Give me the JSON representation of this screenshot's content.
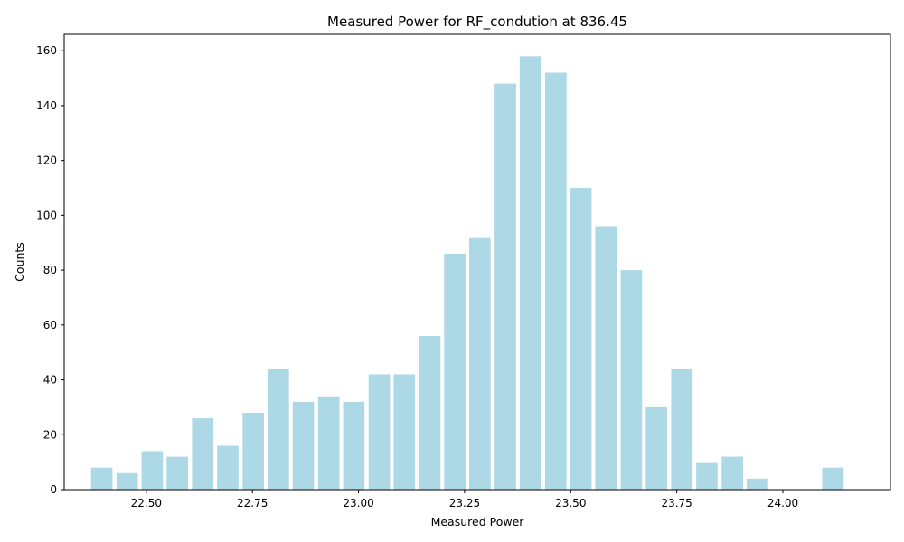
{
  "chart_data": {
    "type": "bar",
    "title": "Measured Power for RF_condution at 836.45",
    "xlabel": "Measured Power",
    "ylabel": "Counts",
    "bar_color": "#add8e6",
    "xlim": [
      22.3065,
      24.2535
    ],
    "ylim": [
      0,
      166
    ],
    "x_ticks": [
      22.5,
      22.75,
      23.0,
      23.25,
      23.5,
      23.75,
      24.0
    ],
    "x_tick_labels": [
      "22.50",
      "22.75",
      "23.00",
      "23.25",
      "23.50",
      "23.75",
      "24.00"
    ],
    "y_ticks": [
      0,
      20,
      40,
      60,
      80,
      100,
      120,
      140,
      160
    ],
    "y_tick_labels": [
      "0",
      "20",
      "40",
      "60",
      "80",
      "100",
      "120",
      "140",
      "160"
    ],
    "bin_width": 0.0594,
    "bars": [
      {
        "x": 22.395,
        "value": 8
      },
      {
        "x": 22.455,
        "value": 6
      },
      {
        "x": 22.514,
        "value": 14
      },
      {
        "x": 22.573,
        "value": 12
      },
      {
        "x": 22.633,
        "value": 26
      },
      {
        "x": 22.692,
        "value": 16
      },
      {
        "x": 22.752,
        "value": 28
      },
      {
        "x": 22.811,
        "value": 44
      },
      {
        "x": 22.87,
        "value": 32
      },
      {
        "x": 22.93,
        "value": 34
      },
      {
        "x": 22.989,
        "value": 32
      },
      {
        "x": 23.049,
        "value": 42
      },
      {
        "x": 23.108,
        "value": 42
      },
      {
        "x": 23.168,
        "value": 56
      },
      {
        "x": 23.227,
        "value": 86
      },
      {
        "x": 23.286,
        "value": 92
      },
      {
        "x": 23.346,
        "value": 148
      },
      {
        "x": 23.405,
        "value": 158
      },
      {
        "x": 23.465,
        "value": 152
      },
      {
        "x": 23.524,
        "value": 110
      },
      {
        "x": 23.583,
        "value": 96
      },
      {
        "x": 23.643,
        "value": 80
      },
      {
        "x": 23.702,
        "value": 30
      },
      {
        "x": 23.762,
        "value": 44
      },
      {
        "x": 23.821,
        "value": 10
      },
      {
        "x": 23.881,
        "value": 12
      },
      {
        "x": 23.94,
        "value": 4
      },
      {
        "x": 24.118,
        "value": 8
      }
    ],
    "grid": false,
    "legend": "none"
  }
}
